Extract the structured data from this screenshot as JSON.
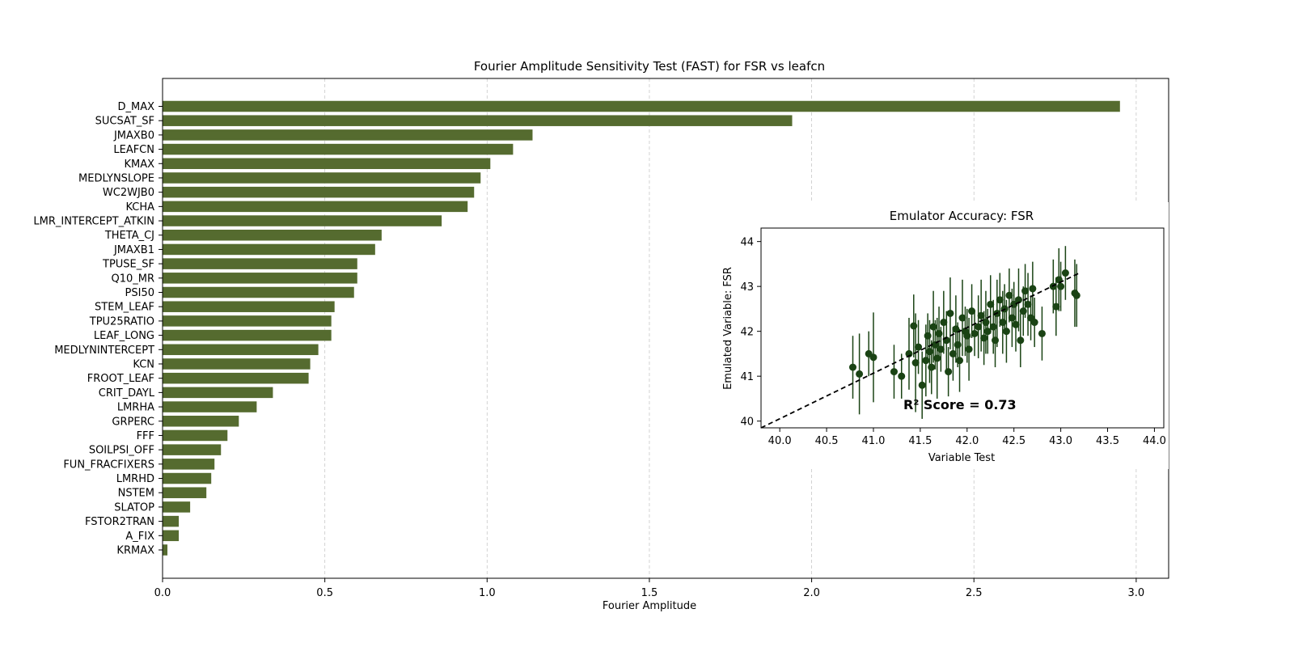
{
  "chart_data": [
    {
      "type": "bar",
      "orientation": "horizontal",
      "title": "Fourier Amplitude Sensitivity Test (FAST) for FSR vs leafcn",
      "xlabel": "Fourier Amplitude",
      "ylabel": "",
      "xlim": [
        0,
        3.1
      ],
      "xticks": [
        "0.0",
        "0.5",
        "1.0",
        "1.5",
        "2.0",
        "2.5",
        "3.0"
      ],
      "grid": "x-dashed",
      "bar_color": "#556b2f",
      "categories": [
        "D_MAX",
        "SUCSAT_SF",
        "JMAXB0",
        "LEAFCN",
        "KMAX",
        "MEDLYNSLOPE",
        "WC2WJB0",
        "KCHA",
        "LMR_INTERCEPT_ATKIN",
        "THETA_CJ",
        "JMAXB1",
        "TPUSE_SF",
        "Q10_MR",
        "PSI50",
        "STEM_LEAF",
        "TPU25RATIO",
        "LEAF_LONG",
        "MEDLYNINTERCEPT",
        "KCN",
        "FROOT_LEAF",
        "CRIT_DAYL",
        "LMRHA",
        "GRPERC",
        "FFF",
        "SOILPSI_OFF",
        "FUN_FRACFIXERS",
        "LMRHD",
        "NSTEM",
        "SLATOP",
        "FSTOR2TRAN",
        "A_FIX",
        "KRMAX"
      ],
      "values": [
        2.95,
        1.94,
        1.14,
        1.08,
        1.01,
        0.98,
        0.96,
        0.94,
        0.86,
        0.675,
        0.655,
        0.6,
        0.6,
        0.59,
        0.53,
        0.52,
        0.52,
        0.48,
        0.455,
        0.45,
        0.34,
        0.29,
        0.235,
        0.2,
        0.18,
        0.16,
        0.15,
        0.135,
        0.085,
        0.05,
        0.05,
        0.015
      ]
    },
    {
      "type": "scatter",
      "title": "Emulator Accuracy: FSR",
      "xlabel": "Variable Test",
      "ylabel": "Emulated Variable: FSR",
      "xlim": [
        39.8,
        44.1
      ],
      "ylim": [
        39.85,
        44.3
      ],
      "xticks": [
        "40.0",
        "40.5",
        "41.0",
        "41.5",
        "42.0",
        "42.5",
        "43.0",
        "43.5",
        "44.0"
      ],
      "yticks": [
        "40",
        "41",
        "42",
        "43",
        "44"
      ],
      "point_color": "#1a4314",
      "annotation": "R² Score = 0.73",
      "reference_line": {
        "style": "dashed",
        "x": [
          39.8,
          43.2
        ],
        "y": [
          39.85,
          43.3
        ]
      },
      "points": [
        {
          "x": 40.78,
          "y": 41.2,
          "err": 0.7
        },
        {
          "x": 40.85,
          "y": 41.05,
          "err": 0.9
        },
        {
          "x": 40.95,
          "y": 41.5,
          "err": 0.5
        },
        {
          "x": 41.0,
          "y": 41.42,
          "err": 1.0
        },
        {
          "x": 41.22,
          "y": 41.1,
          "err": 0.6
        },
        {
          "x": 41.3,
          "y": 41.0,
          "err": 0.5
        },
        {
          "x": 41.38,
          "y": 41.5,
          "err": 0.8
        },
        {
          "x": 41.43,
          "y": 42.12,
          "err": 0.7
        },
        {
          "x": 41.45,
          "y": 41.3,
          "err": 1.1
        },
        {
          "x": 41.48,
          "y": 41.65,
          "err": 0.6
        },
        {
          "x": 41.52,
          "y": 40.8,
          "err": 0.75
        },
        {
          "x": 41.56,
          "y": 41.35,
          "err": 0.8
        },
        {
          "x": 41.58,
          "y": 41.9,
          "err": 0.5
        },
        {
          "x": 41.6,
          "y": 41.55,
          "err": 0.7
        },
        {
          "x": 41.62,
          "y": 41.2,
          "err": 0.6
        },
        {
          "x": 41.64,
          "y": 42.1,
          "err": 0.8
        },
        {
          "x": 41.66,
          "y": 41.7,
          "err": 0.55
        },
        {
          "x": 41.68,
          "y": 41.4,
          "err": 0.9
        },
        {
          "x": 41.7,
          "y": 41.95,
          "err": 0.6
        },
        {
          "x": 41.72,
          "y": 41.6,
          "err": 0.5
        },
        {
          "x": 41.75,
          "y": 42.2,
          "err": 0.7
        },
        {
          "x": 41.78,
          "y": 41.8,
          "err": 0.65
        },
        {
          "x": 41.8,
          "y": 41.1,
          "err": 0.55
        },
        {
          "x": 41.82,
          "y": 42.4,
          "err": 0.8
        },
        {
          "x": 41.85,
          "y": 41.5,
          "err": 0.6
        },
        {
          "x": 41.88,
          "y": 42.05,
          "err": 0.75
        },
        {
          "x": 41.9,
          "y": 41.7,
          "err": 0.5
        },
        {
          "x": 41.92,
          "y": 41.35,
          "err": 0.7
        },
        {
          "x": 41.95,
          "y": 42.3,
          "err": 0.85
        },
        {
          "x": 41.98,
          "y": 42.0,
          "err": 0.55
        },
        {
          "x": 42.0,
          "y": 41.9,
          "err": 0.6
        },
        {
          "x": 42.02,
          "y": 41.6,
          "err": 0.7
        },
        {
          "x": 42.05,
          "y": 42.45,
          "err": 0.6
        },
        {
          "x": 42.08,
          "y": 41.95,
          "err": 0.5
        },
        {
          "x": 42.12,
          "y": 42.1,
          "err": 0.7
        },
        {
          "x": 42.15,
          "y": 42.35,
          "err": 0.8
        },
        {
          "x": 42.18,
          "y": 41.85,
          "err": 0.6
        },
        {
          "x": 42.2,
          "y": 42.2,
          "err": 0.7
        },
        {
          "x": 42.22,
          "y": 42.0,
          "err": 0.5
        },
        {
          "x": 42.25,
          "y": 42.6,
          "err": 0.65
        },
        {
          "x": 42.28,
          "y": 42.1,
          "err": 0.6
        },
        {
          "x": 42.3,
          "y": 41.8,
          "err": 0.6
        },
        {
          "x": 42.32,
          "y": 42.4,
          "err": 0.75
        },
        {
          "x": 42.35,
          "y": 42.7,
          "err": 0.6
        },
        {
          "x": 42.38,
          "y": 42.2,
          "err": 0.7
        },
        {
          "x": 42.4,
          "y": 42.5,
          "err": 0.55
        },
        {
          "x": 42.42,
          "y": 42.0,
          "err": 0.7
        },
        {
          "x": 42.45,
          "y": 42.8,
          "err": 0.6
        },
        {
          "x": 42.48,
          "y": 42.3,
          "err": 0.65
        },
        {
          "x": 42.5,
          "y": 42.6,
          "err": 0.5
        },
        {
          "x": 42.52,
          "y": 42.15,
          "err": 0.6
        },
        {
          "x": 42.55,
          "y": 42.7,
          "err": 0.7
        },
        {
          "x": 42.57,
          "y": 41.8,
          "err": 0.6
        },
        {
          "x": 42.6,
          "y": 42.45,
          "err": 0.55
        },
        {
          "x": 42.62,
          "y": 42.9,
          "err": 0.6
        },
        {
          "x": 42.65,
          "y": 42.6,
          "err": 0.7
        },
        {
          "x": 42.68,
          "y": 42.3,
          "err": 0.5
        },
        {
          "x": 42.7,
          "y": 42.95,
          "err": 0.6
        },
        {
          "x": 42.72,
          "y": 42.2,
          "err": 0.55
        },
        {
          "x": 42.8,
          "y": 41.95,
          "err": 0.6
        },
        {
          "x": 42.92,
          "y": 43.0,
          "err": 0.6
        },
        {
          "x": 42.95,
          "y": 42.55,
          "err": 0.65
        },
        {
          "x": 42.98,
          "y": 43.15,
          "err": 0.7
        },
        {
          "x": 43.0,
          "y": 43.0,
          "err": 0.55
        },
        {
          "x": 43.05,
          "y": 43.3,
          "err": 0.6
        },
        {
          "x": 43.15,
          "y": 42.85,
          "err": 0.75
        },
        {
          "x": 43.17,
          "y": 42.8,
          "err": 0.7
        }
      ]
    }
  ]
}
